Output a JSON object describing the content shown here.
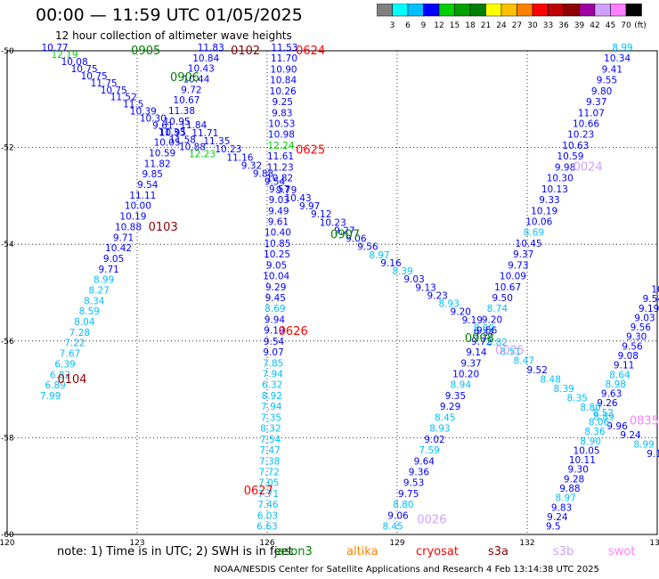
{
  "header": {
    "title": "00:00 — 11:59 UTC 01/05/2025",
    "subtitle": "12 hour collection of altimeter wave heights"
  },
  "colorbar": {
    "unit": "(ft)",
    "colors": [
      "#808080",
      "#00ffff",
      "#00bfff",
      "#0000ff",
      "#00d000",
      "#00a000",
      "#008000",
      "#ffff00",
      "#ffc000",
      "#ff8000",
      "#ff0000",
      "#c00000",
      "#900000",
      "#a000a0",
      "#d0a0ff",
      "#ff80ff",
      "#000000"
    ],
    "labels": [
      "3",
      "6",
      "9",
      "12",
      "15",
      "18",
      "21",
      "24",
      "27",
      "30",
      "33",
      "36",
      "39",
      "42",
      "45",
      "70"
    ]
  },
  "axes": {
    "x_ticks": [
      {
        "value": 120,
        "label": "120"
      },
      {
        "value": 123,
        "label": "123"
      },
      {
        "value": 126,
        "label": "126"
      },
      {
        "value": 129,
        "label": "129"
      },
      {
        "value": 132,
        "label": "132"
      },
      {
        "value": 135,
        "label": "135"
      }
    ],
    "y_ticks": [
      {
        "value": -50,
        "label": "-50"
      },
      {
        "value": -52,
        "label": "-52"
      },
      {
        "value": -54,
        "label": "-54"
      },
      {
        "value": -56,
        "label": "-56"
      },
      {
        "value": -58,
        "label": "-58"
      },
      {
        "value": -60,
        "label": "-60"
      }
    ]
  },
  "passes": [
    {
      "label": "0905",
      "color": "#008000",
      "lon": 123.2,
      "lat": -50.0
    },
    {
      "label": "0102",
      "color": "#900000",
      "lon": 125.5,
      "lat": -50.0
    },
    {
      "label": "0624",
      "color": "#ff0000",
      "lon": 127.0,
      "lat": -50.0
    },
    {
      "label": "0906",
      "color": "#008000",
      "lon": 124.1,
      "lat": -50.55
    },
    {
      "label": "0625",
      "color": "#ff0000",
      "lon": 127.0,
      "lat": -52.05
    },
    {
      "label": "0103",
      "color": "#900000",
      "lon": 123.6,
      "lat": -53.65
    },
    {
      "label": "0907",
      "color": "#008000",
      "lon": 127.8,
      "lat": -53.8
    },
    {
      "label": "0024",
      "color": "#d0a0ff",
      "lon": 133.4,
      "lat": -52.4
    },
    {
      "label": "0626",
      "color": "#ff0000",
      "lon": 126.6,
      "lat": -55.8
    },
    {
      "label": "0908",
      "color": "#008000",
      "lon": 130.9,
      "lat": -55.95
    },
    {
      "label": "0025",
      "color": "#d0a0ff",
      "lon": 131.6,
      "lat": -56.2
    },
    {
      "label": "0104",
      "color": "#900000",
      "lon": 121.5,
      "lat": -56.8
    },
    {
      "label": "0835",
      "color": "#ff80ff",
      "lon": 134.7,
      "lat": -57.65
    },
    {
      "label": "0627",
      "color": "#ff0000",
      "lon": 125.8,
      "lat": -59.1
    },
    {
      "label": "0026",
      "color": "#d0a0ff",
      "lon": 129.8,
      "lat": -59.7
    }
  ],
  "tracks": [
    {
      "id": "0905",
      "from": [
        121.1,
        -50.0
      ],
      "to": [
        124.5,
        -52.2
      ],
      "values": [
        "10.77",
        "12.19",
        "10.08",
        "10.75",
        "10.75",
        "11.75",
        "10.75",
        "11.52",
        "11.5",
        "10.39",
        "10.30",
        "9.61",
        "10.95",
        "11.58",
        "10.88",
        "12.23"
      ]
    },
    {
      "id": "0102",
      "from": [
        124.7,
        -50.0
      ],
      "to": [
        121.0,
        -57.2
      ],
      "values": [
        "11.83",
        "10.84",
        "10.43",
        "10.44",
        "9.72",
        "10.67",
        "11.38",
        "10.95",
        "11.33",
        "10.05",
        "10.59",
        "11.82",
        "9.85",
        "9.54",
        "11.11",
        "10.00",
        "10.19",
        "10.88",
        "9.71",
        "10.42",
        "9.05",
        "9.71",
        "8.99",
        "8.27",
        "8.34",
        "8.59",
        "8.04",
        "7.28",
        "7.22",
        "7.67",
        "6.39",
        "6.82",
        "6.89",
        "7.99"
      ]
    },
    {
      "id": "0624",
      "from": [
        126.4,
        -50.0
      ],
      "to": [
        126.0,
        -59.9
      ],
      "values": [
        "11.53",
        "11.70",
        "10.90",
        "10.84",
        "10.26",
        "9.25",
        "9.83",
        "10.53",
        "10.98",
        "12.24",
        "11.61",
        "11.23",
        "10.82",
        "9.57",
        "9.03",
        "9.49",
        "9.61",
        "10.40",
        "10.85",
        "10.25",
        "9.05",
        "10.04",
        "9.29",
        "9.45",
        "8.69",
        "9.94",
        "9.19",
        "9.54",
        "9.07",
        "7.85",
        "7.94",
        "6.32",
        "8.92",
        "7.94",
        "7.35",
        "8.32",
        "7.54",
        "7.47",
        "7.38",
        "7.72",
        "7.05",
        "7.71",
        "7.46",
        "6.03",
        "6.63"
      ]
    },
    {
      "id": "0625",
      "from": [
        124.3,
        -51.6
      ],
      "to": [
        131.0,
        -55.8
      ],
      "values": [
        "11.84",
        "11.71",
        "11.35",
        "10.23",
        "11.16",
        "9.32",
        "9.88",
        "9.54",
        "9.79",
        "10.43",
        "9.97",
        "9.12",
        "10.23",
        "9.27",
        "9.06",
        "9.56",
        "8.97",
        "9.16",
        "8.39",
        "9.03",
        "9.13",
        "9.23",
        "8.93",
        "9.20",
        "9.19",
        "8.69"
      ]
    },
    {
      "id": "0024",
      "from": [
        134.2,
        -50.0
      ],
      "to": [
        128.9,
        -59.9
      ],
      "values": [
        "8.99",
        "10.34",
        "9.41",
        "9.55",
        "9.80",
        "9.37",
        "11.07",
        "10.66",
        "10.23",
        "10.63",
        "10.59",
        "9.98",
        "10.30",
        "10.13",
        "9.33",
        "10.19",
        "10.06",
        "8.69",
        "10.45",
        "9.37",
        "9.73",
        "10.09",
        "10.67",
        "9.50",
        "8.74",
        "9.20",
        "9.56",
        "9.72",
        "9.14",
        "9.37",
        "10.20",
        "8.94",
        "9.35",
        "9.29",
        "8.45",
        "8.93",
        "9.02",
        "7.59",
        "9.64",
        "9.36",
        "9.53",
        "9.75",
        "8.80",
        "9.06",
        "8.45"
      ]
    },
    {
      "id": "0025",
      "from": [
        131.0,
        -55.9
      ],
      "to": [
        135.0,
        -58.4
      ],
      "values": [
        "9.37",
        "8.82",
        "8.51",
        "8.47",
        "9.52",
        "8.48",
        "8.39",
        "8.35",
        "8.80",
        "8.89",
        "9.96",
        "9.24",
        "8.99",
        "9.11"
      ]
    },
    {
      "id": "0835",
      "from": [
        135.0,
        -55.0
      ],
      "to": [
        132.6,
        -59.9
      ],
      "values": [
        "10",
        "9.54",
        "9.19",
        "9.03",
        "9.56",
        "9.30",
        "9.56",
        "9.08",
        "9.11",
        "8.64",
        "8.98",
        "9.63",
        "9.26",
        "8.52",
        "8.06",
        "8.36",
        "8.90",
        "10.05",
        "10.11",
        "9.30",
        "9.28",
        "9.88",
        "8.97",
        "9.83",
        "9.24",
        "9.5"
      ]
    }
  ],
  "note": "note:  1) Time is in UTC; 2) SWH is in feet",
  "satellites": [
    {
      "name": "jason3",
      "color": "#008000"
    },
    {
      "name": "altika",
      "color": "#ff8000"
    },
    {
      "name": "cryosat",
      "color": "#ff0000"
    },
    {
      "name": "s3a",
      "color": "#900000"
    },
    {
      "name": "s3b",
      "color": "#d0a0ff"
    },
    {
      "name": "swot",
      "color": "#ff80ff"
    }
  ],
  "footer": "NOAA/NESDIS Center for Satellite Applications and Research     4 Feb 13:14:38 UTC 2025"
}
